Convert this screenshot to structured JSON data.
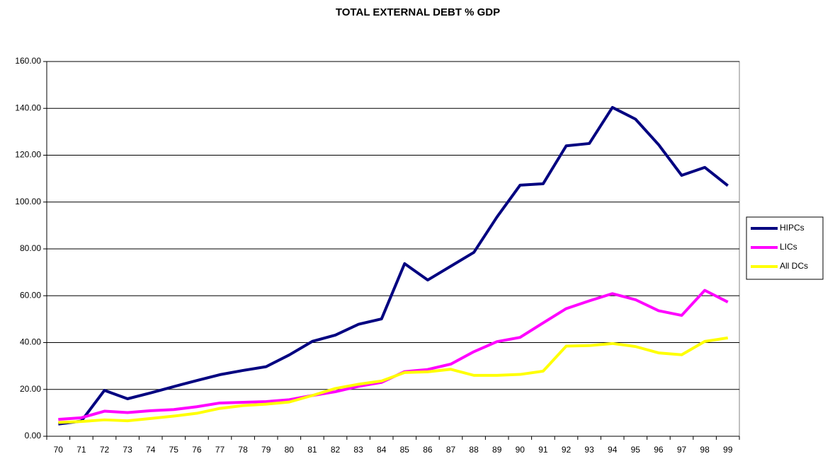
{
  "chart_data": {
    "type": "line",
    "title": "TOTAL EXTERNAL DEBT % GDP",
    "categories": [
      "70",
      "71",
      "72",
      "73",
      "74",
      "75",
      "76",
      "77",
      "78",
      "79",
      "80",
      "81",
      "82",
      "83",
      "84",
      "85",
      "86",
      "87",
      "88",
      "89",
      "90",
      "91",
      "92",
      "93",
      "94",
      "95",
      "96",
      "97",
      "98",
      "99"
    ],
    "series": [
      {
        "name": "HIPCs",
        "color": "#000080",
        "values": [
          5.2,
          6.5,
          19.6,
          16.0,
          18.5,
          21.2,
          23.8,
          26.3,
          28.1,
          29.7,
          34.7,
          40.5,
          43.2,
          47.8,
          50.1,
          73.7,
          66.7,
          72.6,
          78.5,
          93.6,
          107.2,
          107.8,
          124.0,
          125.0,
          140.4,
          135.4,
          124.5,
          111.4,
          114.8,
          107.0
        ]
      },
      {
        "name": "LICs",
        "color": "#ff00ff",
        "values": [
          7.2,
          7.9,
          10.7,
          10.1,
          10.9,
          11.4,
          12.6,
          14.2,
          14.5,
          14.8,
          15.6,
          17.4,
          19.0,
          21.3,
          23.0,
          27.6,
          28.5,
          30.8,
          36.1,
          40.4,
          42.2,
          48.4,
          54.5,
          57.8,
          60.9,
          58.3,
          53.6,
          51.6,
          62.3,
          57.3
        ]
      },
      {
        "name": "All DCs",
        "color": "#ffff00",
        "values": [
          5.9,
          6.3,
          7.0,
          6.6,
          7.6,
          8.6,
          9.8,
          11.9,
          13.1,
          13.7,
          14.6,
          17.4,
          20.4,
          22.2,
          23.6,
          27.2,
          27.5,
          28.6,
          26.0,
          26.0,
          26.4,
          27.8,
          38.5,
          38.7,
          39.6,
          38.3,
          35.6,
          34.8,
          40.5,
          42.0
        ]
      }
    ],
    "ylim": [
      0,
      160
    ],
    "yticks": [
      {
        "value": 0,
        "label": "0.00"
      },
      {
        "value": 20,
        "label": "20.00"
      },
      {
        "value": 40,
        "label": "40.00"
      },
      {
        "value": 60,
        "label": "60.00"
      },
      {
        "value": 80,
        "label": "80.00"
      },
      {
        "value": 100,
        "label": "100.00"
      },
      {
        "value": 120,
        "label": "120.00"
      },
      {
        "value": 140,
        "label": "140.00"
      },
      {
        "value": 160,
        "label": "160.00"
      }
    ],
    "grid": true,
    "legend": "right"
  }
}
